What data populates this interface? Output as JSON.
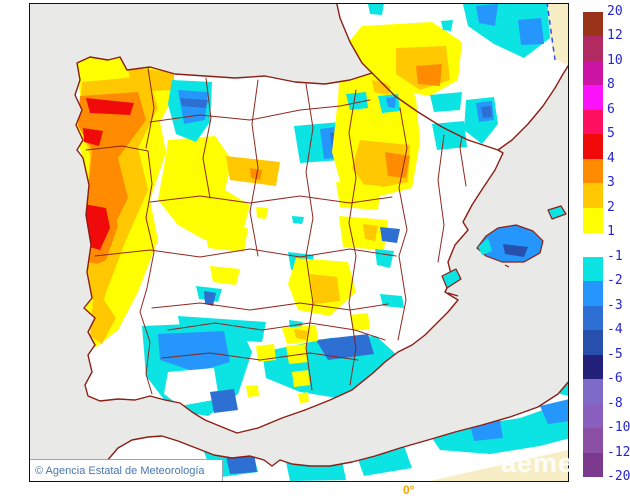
{
  "map": {
    "copyright": "© Agencia Estatal de Meteorología",
    "watermark": "aemet",
    "bottom_meridian_label": "0°"
  },
  "legend": {
    "tick_labels": [
      "20",
      "12",
      "10",
      "8",
      "6",
      "5",
      "4",
      "3",
      "2",
      "1",
      "-1",
      "-2",
      "-3",
      "-4",
      "-5",
      "-6",
      "-8",
      "-10",
      "-12",
      "-20"
    ],
    "block_colors": [
      "#99331A",
      "#B12A62",
      "#CC14A4",
      "#FA12FA",
      "#FF1060",
      "#F00A0A",
      "#FF8C00",
      "#FFC800",
      "#FFFF00",
      null,
      "#0CE4E4",
      "#2496FC",
      "#2D6FD2",
      "#2750AC",
      "#222078",
      "#7E6BC8",
      "#8A60BE",
      "#8C4FA6",
      "#7C3A8E"
    ]
  },
  "colors": {
    "sea": "#E9E9E8",
    "outside": "#F8EEC6",
    "border": "#8B1E14",
    "legend_text": "#2525CC",
    "copyright_text": "#4878B0",
    "meridian_text": "#F0A500",
    "meridian_line": "#3050E8",
    "watermark_color": "#FFFFFF",
    "yellow": "#FFFF00",
    "gold": "#FFC800",
    "orange": "#FF8C00",
    "red": "#F00A0A",
    "cyan": "#0CE4E4",
    "dodger": "#2496FC",
    "royal": "#2D6FD2",
    "steel": "#2750AC",
    "navy": "#222078"
  }
}
